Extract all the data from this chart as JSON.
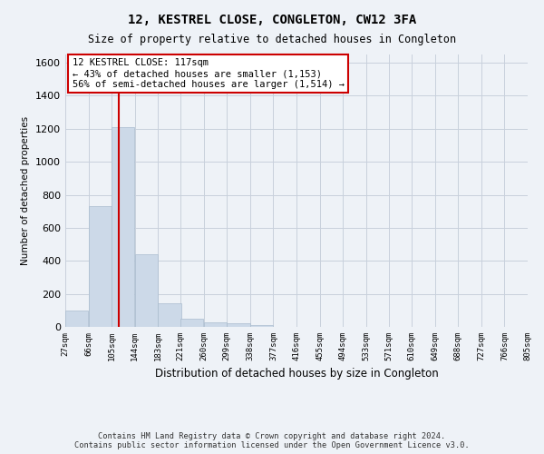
{
  "title": "12, KESTREL CLOSE, CONGLETON, CW12 3FA",
  "subtitle": "Size of property relative to detached houses in Congleton",
  "xlabel": "Distribution of detached houses by size in Congleton",
  "ylabel": "Number of detached properties",
  "bar_color": "#ccd9e8",
  "bar_edgecolor": "#aabcce",
  "grid_color": "#c8d0dc",
  "background_color": "#eef2f7",
  "property_line_x": 117,
  "property_line_color": "#cc0000",
  "annotation_text": "12 KESTREL CLOSE: 117sqm\n← 43% of detached houses are smaller (1,153)\n56% of semi-detached houses are larger (1,514) →",
  "annotation_box_color": "#ffffff",
  "annotation_box_edgecolor": "#cc0000",
  "bins_left_edges": [
    27,
    66,
    105,
    144,
    183,
    221,
    260,
    299,
    338,
    377,
    416,
    455,
    494,
    533,
    571,
    610,
    649,
    688,
    727,
    766
  ],
  "bin_width": 39,
  "bar_heights": [
    100,
    730,
    1210,
    440,
    145,
    50,
    30,
    20,
    10,
    0,
    0,
    0,
    0,
    0,
    0,
    0,
    0,
    0,
    0,
    0
  ],
  "ylim": [
    0,
    1650
  ],
  "yticks": [
    0,
    200,
    400,
    600,
    800,
    1000,
    1200,
    1400,
    1600
  ],
  "xtick_labels": [
    "27sqm",
    "66sqm",
    "105sqm",
    "144sqm",
    "183sqm",
    "221sqm",
    "260sqm",
    "299sqm",
    "338sqm",
    "377sqm",
    "416sqm",
    "455sqm",
    "494sqm",
    "533sqm",
    "571sqm",
    "610sqm",
    "649sqm",
    "688sqm",
    "727sqm",
    "766sqm",
    "805sqm"
  ],
  "footnote": "Contains HM Land Registry data © Crown copyright and database right 2024.\nContains public sector information licensed under the Open Government Licence v3.0."
}
